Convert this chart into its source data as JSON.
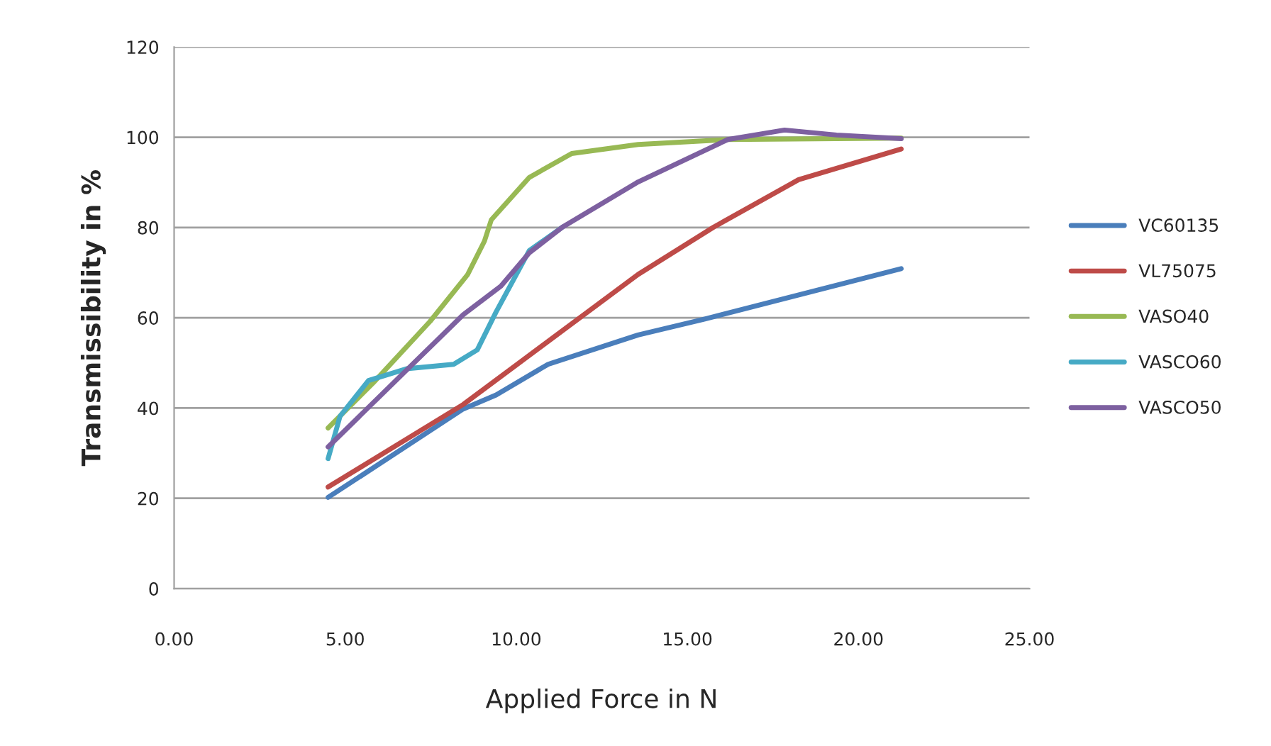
{
  "chart_data": {
    "type": "line",
    "xlabel": "Applied Force in N",
    "ylabel": "Transmissibility in %",
    "xlim": [
      0,
      25
    ],
    "ylim": [
      0,
      120
    ],
    "xticks": [
      {
        "value": 0,
        "label": "0.00"
      },
      {
        "value": 5,
        "label": "5.00"
      },
      {
        "value": 10,
        "label": "10.00"
      },
      {
        "value": 15,
        "label": "15.00"
      },
      {
        "value": 20,
        "label": "20.00"
      },
      {
        "value": 25,
        "label": "25.00"
      }
    ],
    "yticks": [
      0,
      20,
      40,
      60,
      80,
      100,
      120
    ],
    "grid": "y",
    "legend": "right",
    "marker": "none",
    "line_style": "solid",
    "series": [
      {
        "name": "VC60135",
        "color": "#4a7ebb",
        "x": [
          4.5,
          8.45,
          9.41,
          10.93,
          13.56,
          15.49,
          21.25
        ],
        "values": [
          20.2,
          39.8,
          42.9,
          49.7,
          56.2,
          59.7,
          70.9
        ]
      },
      {
        "name": "VL75075",
        "color": "#be4b48",
        "x": [
          4.5,
          8.45,
          13.56,
          15.77,
          18.25,
          21.25
        ],
        "values": [
          22.5,
          40.8,
          69.6,
          80.1,
          90.6,
          97.4
        ]
      },
      {
        "name": "VASO40",
        "color": "#98b954",
        "x": [
          4.5,
          5.82,
          7.48,
          8.58,
          9.07,
          9.27,
          10.38,
          11.62,
          13.56,
          16.18,
          21.25
        ],
        "values": [
          35.6,
          45.6,
          59.2,
          69.6,
          77.0,
          81.7,
          91.1,
          96.4,
          98.4,
          99.5,
          99.8
        ]
      },
      {
        "name": "VASCO60",
        "color": "#46aac5",
        "x": [
          4.5,
          4.85,
          5.68,
          6.79,
          8.17,
          8.86,
          9.41,
          10.38,
          11.35
        ],
        "values": [
          28.8,
          38.2,
          46.1,
          48.7,
          49.7,
          52.9,
          61.3,
          74.9,
          80.1
        ]
      },
      {
        "name": "VASCO50",
        "color": "#7d60a0",
        "x": [
          4.5,
          8.45,
          9.55,
          10.38,
          11.35,
          13.56,
          16.18,
          17.84,
          19.36,
          21.25
        ],
        "values": [
          31.4,
          60.7,
          67.0,
          74.4,
          80.1,
          90.1,
          99.5,
          101.6,
          100.5,
          99.7
        ]
      }
    ]
  }
}
